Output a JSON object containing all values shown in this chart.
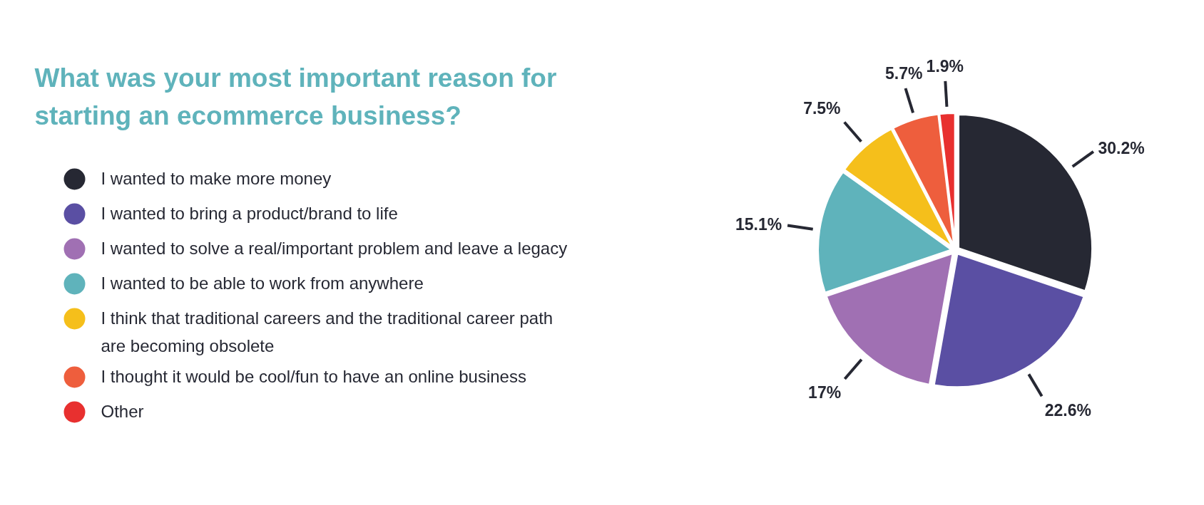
{
  "chart_data": {
    "type": "pie",
    "title": "What was your most important reason for starting an ecommerce business?",
    "categories": [
      "I wanted to make more money",
      "I wanted to bring a product/brand to life",
      "I wanted to solve a real/important problem and leave a legacy",
      "I wanted to be able to work from anywhere",
      "I think that traditional careers and the traditional career path are becoming obsolete",
      "I thought it would be cool/fun to have an online business",
      "Other"
    ],
    "values": [
      30.2,
      22.6,
      17,
      15.1,
      7.5,
      5.7,
      1.9
    ],
    "colors": [
      "#262833",
      "#5a4fa3",
      "#a070b3",
      "#5fb3bb",
      "#f5bf1b",
      "#ee5e3d",
      "#e8302f"
    ],
    "value_labels": [
      "30.2%",
      "22.6%",
      "17%",
      "15.1%",
      "7.5%",
      "5.7%",
      "1.9%"
    ],
    "legend": "left"
  }
}
